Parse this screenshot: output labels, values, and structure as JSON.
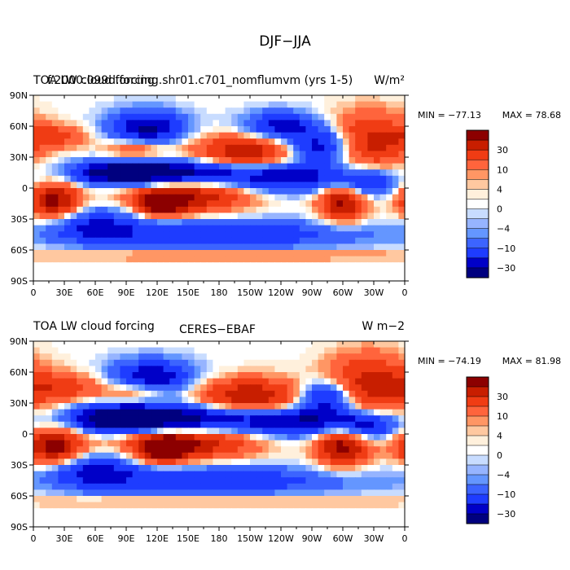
{
  "figure_title": "DJF−JJA",
  "chart_data": [
    {
      "type": "heatmap",
      "title_left": "TOA LW cloud forcing",
      "title_center": "f.2000.099d.forcing.shr01.c701_nomflumvm (yrs 1-5)",
      "units": "W/m²",
      "min_label": "MIN = −77.13",
      "max_label": "MAX =  78.68",
      "x_ticks": [
        "0",
        "30E",
        "60E",
        "90E",
        "120E",
        "150E",
        "180",
        "150W",
        "120W",
        "90W",
        "60W",
        "30W",
        "0"
      ],
      "y_ticks": [
        "90N",
        "60N",
        "30N",
        "0",
        "30S",
        "60S",
        "90S"
      ],
      "xlim": [
        0,
        360
      ],
      "ylim": [
        -90,
        90
      ],
      "colorbar_labels": [
        "30",
        "10",
        "4",
        "0",
        "−4",
        "−10",
        "−30"
      ],
      "features": [
        {
          "lon": 20,
          "lat": -12,
          "value": 40,
          "sx": 18,
          "sy": 12
        },
        {
          "lon": 150,
          "lat": -8,
          "value": 35,
          "sx": 40,
          "sy": 11
        },
        {
          "lon": 125,
          "lat": -15,
          "value": 40,
          "sx": 15,
          "sy": 8
        },
        {
          "lon": 300,
          "lat": -12,
          "value": 40,
          "sx": 16,
          "sy": 14
        },
        {
          "lon": 205,
          "lat": 34,
          "value": 35,
          "sx": 35,
          "sy": 12
        },
        {
          "lon": 325,
          "lat": 45,
          "value": 30,
          "sx": 28,
          "sy": 20
        },
        {
          "lon": 100,
          "lat": 38,
          "value": 20,
          "sx": 22,
          "sy": 8
        },
        {
          "lon": 20,
          "lat": 50,
          "value": 18,
          "sx": 22,
          "sy": 8
        },
        {
          "lon": 140,
          "lat": 15,
          "value": -42,
          "sx": 55,
          "sy": 9
        },
        {
          "lon": 250,
          "lat": 10,
          "value": -30,
          "sx": 40,
          "sy": 10
        },
        {
          "lon": 80,
          "lat": 15,
          "value": -30,
          "sx": 30,
          "sy": 8
        },
        {
          "lon": 110,
          "lat": 58,
          "value": -38,
          "sx": 25,
          "sy": 12
        },
        {
          "lon": 280,
          "lat": 40,
          "value": -35,
          "sx": 22,
          "sy": 12
        },
        {
          "lon": 240,
          "lat": 60,
          "value": -30,
          "sx": 25,
          "sy": 10
        },
        {
          "lon": 320,
          "lat": 5,
          "value": -30,
          "sx": 22,
          "sy": 10
        },
        {
          "lon": 180,
          "lat": -45,
          "value": -25,
          "sx": 100,
          "sy": 10
        },
        {
          "lon": 180,
          "lat": -65,
          "value": 12,
          "sx": 160,
          "sy": 4
        },
        {
          "lon": 60,
          "lat": -35,
          "value": -22,
          "sx": 30,
          "sy": 12
        }
      ]
    },
    {
      "type": "heatmap",
      "title_left": "TOA LW cloud forcing",
      "title_center": "CERES−EBAF",
      "units": "W m−2",
      "min_label": "MIN = −74.19",
      "max_label": "MAX =  81.98",
      "x_ticks": [
        "0",
        "30E",
        "60E",
        "90E",
        "120E",
        "150E",
        "180",
        "150W",
        "120W",
        "90W",
        "60W",
        "30W",
        "0"
      ],
      "y_ticks": [
        "90N",
        "60N",
        "30N",
        "0",
        "30S",
        "60S",
        "90S"
      ],
      "xlim": [
        0,
        360
      ],
      "ylim": [
        -90,
        90
      ],
      "colorbar_labels": [
        "30",
        "10",
        "4",
        "0",
        "−4",
        "−10",
        "−30"
      ],
      "features": [
        {
          "lon": 20,
          "lat": -12,
          "value": 42,
          "sx": 20,
          "sy": 12
        },
        {
          "lon": 150,
          "lat": -8,
          "value": 36,
          "sx": 45,
          "sy": 11
        },
        {
          "lon": 125,
          "lat": -15,
          "value": 42,
          "sx": 16,
          "sy": 9
        },
        {
          "lon": 300,
          "lat": -10,
          "value": 42,
          "sx": 18,
          "sy": 15
        },
        {
          "lon": 210,
          "lat": 35,
          "value": 36,
          "sx": 38,
          "sy": 13
        },
        {
          "lon": 325,
          "lat": 45,
          "value": 32,
          "sx": 30,
          "sy": 22
        },
        {
          "lon": 30,
          "lat": 45,
          "value": 20,
          "sx": 30,
          "sy": 10
        },
        {
          "lon": 100,
          "lat": 40,
          "value": 18,
          "sx": 20,
          "sy": 8
        },
        {
          "lon": 140,
          "lat": 15,
          "value": -44,
          "sx": 55,
          "sy": 10
        },
        {
          "lon": 260,
          "lat": 12,
          "value": -35,
          "sx": 45,
          "sy": 10
        },
        {
          "lon": 80,
          "lat": 15,
          "value": -38,
          "sx": 30,
          "sy": 9
        },
        {
          "lon": 115,
          "lat": 55,
          "value": -35,
          "sx": 28,
          "sy": 12
        },
        {
          "lon": 285,
          "lat": 35,
          "value": -38,
          "sx": 20,
          "sy": 12
        },
        {
          "lon": 320,
          "lat": 8,
          "value": -32,
          "sx": 22,
          "sy": 10
        },
        {
          "lon": 180,
          "lat": -45,
          "value": -22,
          "sx": 100,
          "sy": 10
        },
        {
          "lon": 180,
          "lat": -65,
          "value": 10,
          "sx": 160,
          "sy": 4
        },
        {
          "lon": 60,
          "lat": -35,
          "value": -25,
          "sx": 30,
          "sy": 12
        }
      ]
    }
  ],
  "colors": {
    "scale": [
      "#00007f",
      "#0000c8",
      "#1e3cff",
      "#3c64ff",
      "#6496ff",
      "#96b4ff",
      "#c8dcff",
      "#ffffff",
      "#fff0dc",
      "#ffc8a0",
      "#ff9664",
      "#ff643c",
      "#f03c14",
      "#c81e00",
      "#8c0000"
    ],
    "frame": "#000000"
  }
}
